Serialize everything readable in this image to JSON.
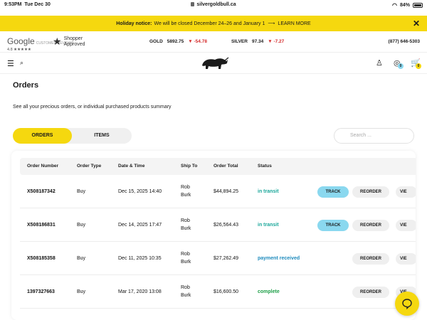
{
  "status_bar": {
    "time": "9:53PM",
    "date": "Tue Dec 30",
    "url": "silvergoldbull.ca",
    "battery": "84%"
  },
  "notice": {
    "label": "Holiday notice:",
    "text": "We will be closed December 24–26 and January 1",
    "link": "LEARN MORE",
    "close": "✕"
  },
  "trust": {
    "google": "Google",
    "google_sub": "CUSTOMER REVIEWS",
    "google_rating": "4.8 ★★★★★",
    "shopper_line1": "Shopper",
    "shopper_line2": "Approved"
  },
  "prices": {
    "gold_label": "GOLD",
    "gold_price": "5892.75",
    "gold_change": "▼ -54.78",
    "silver_label": "SILVER",
    "silver_price": "97.34",
    "silver_change": "▼ -7.27",
    "phone": "(877) 646-5303"
  },
  "nav": {
    "cart_count": "0",
    "coin_count": "0"
  },
  "page": {
    "title": "Orders",
    "description": "See all your precious orders, or individual purchased products summary"
  },
  "tabs": {
    "orders": "ORDERS",
    "items": "ITEMS"
  },
  "search": {
    "placeholder": "Search ..."
  },
  "table": {
    "headers": {
      "number": "Order Number",
      "type": "Order Type",
      "date": "Date & Time",
      "ship": "Ship To",
      "total": "Order Total",
      "status": "Status"
    },
    "rows": [
      {
        "number": "X508187342",
        "type": "Buy",
        "date": "Dec 15, 2025 14:40",
        "ship1": "Rob",
        "ship2": "Burk",
        "total": "$44,894.25",
        "status": "in transit",
        "track": "TRACK",
        "reorder": "REORDER",
        "view": "VIE"
      },
      {
        "number": "X508186831",
        "type": "Buy",
        "date": "Dec 14, 2025 17:47",
        "ship1": "Rob",
        "ship2": "Burk",
        "total": "$26,564.43",
        "status": "in transit",
        "track": "TRACK",
        "reorder": "REORDER",
        "view": "VIE"
      },
      {
        "number": "X508185358",
        "type": "Buy",
        "date": "Dec 11, 2025 10:35",
        "ship1": "Rob",
        "ship2": "Burk",
        "total": "$27,262.49",
        "status": "payment received",
        "reorder": "REORDER",
        "view": "VIE"
      },
      {
        "number": "1397327663",
        "type": "Buy",
        "date": "Mar 17, 2020 13:08",
        "ship1": "Rob",
        "ship2": "Burk",
        "total": "$16,600.50",
        "status": "complete",
        "reorder": "REORDER",
        "view": "VIE"
      }
    ]
  },
  "colors": {
    "accent_yellow": "#f5d80f",
    "track_blue": "#8ad8ef"
  }
}
